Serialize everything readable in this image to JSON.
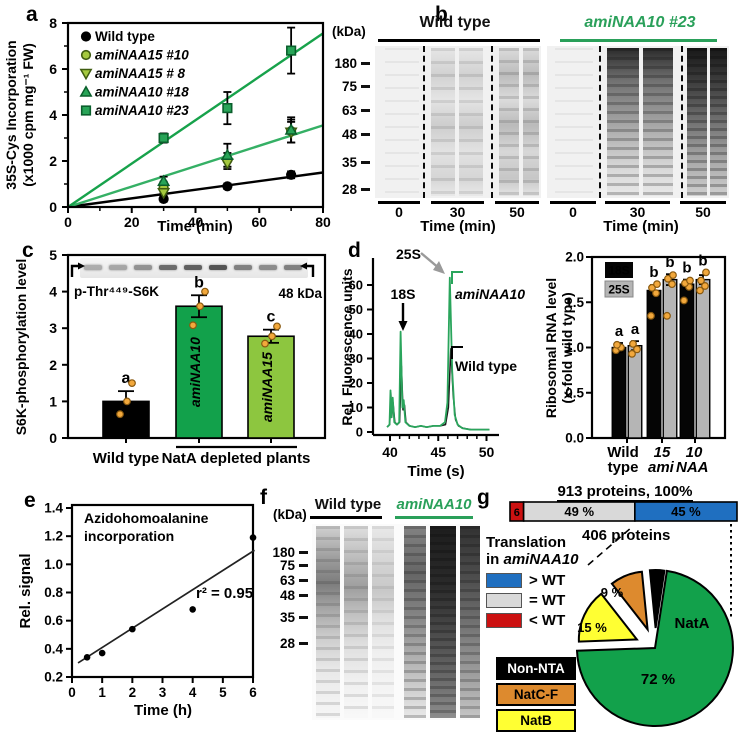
{
  "panels": {
    "a": "a",
    "b": "b",
    "c": "c",
    "d": "d",
    "e": "e",
    "f": "f",
    "g": "g"
  },
  "colors": {
    "green_dark": "#17a24b",
    "green_mid": "#35b065",
    "green_light": "#8dc63f",
    "green_text": "#2aa05a",
    "orange_dot": "#f2a83c",
    "gray_bar": "#b5b5b5",
    "blue": "#1f6fc0",
    "red": "#cc1111",
    "orange_pie": "#dd8a2e",
    "yellow": "#ffff33"
  },
  "panel_b": {
    "kda_header": "(kDa)",
    "kda_marks": [
      "180",
      "75",
      "63",
      "48",
      "35",
      "28"
    ],
    "group_left": "Wild type",
    "group_right": "amiNAA10 #23",
    "time_ticks": [
      "0",
      "30",
      "50"
    ],
    "time_label": "Time (min)"
  },
  "panel_f": {
    "kda_header": "(kDa)",
    "kda_marks": [
      "180",
      "75",
      "63",
      "48",
      "35",
      "28"
    ],
    "group_left": "Wild type",
    "group_right": "amiNAA10"
  },
  "panel_g": {
    "bar_title": "913 proteins, 100%",
    "pie_title": "406 proteins",
    "translation_legend": {
      "line1": "Translation",
      "line2_prefix": "in ",
      "line2_gene": "amiNAA10",
      "items": [
        {
          "label": "> WT",
          "color": "#1f6fc0"
        },
        {
          "label": "= WT",
          "color": "#d9d9d9"
        },
        {
          "label": "< WT",
          "color": "#cc1111"
        }
      ]
    },
    "nat_legend": [
      {
        "label": "Non-NTA",
        "bg": "#000000",
        "fg": "#ffffff"
      },
      {
        "label": "NatC-F",
        "bg": "#dd8a2e",
        "fg": "#000000"
      },
      {
        "label": "NatB",
        "bg": "#ffff33",
        "fg": "#000000"
      }
    ]
  },
  "chart_data": [
    {
      "panel": "a",
      "type": "scatter",
      "xlabel": "Time (min)",
      "ylabel_line1": "35S-Cys Incorporation",
      "ylabel_line2": "(x1000 cpm mg⁻¹ FW)",
      "xlim": [
        0,
        80
      ],
      "ylim": [
        0,
        8
      ],
      "xticks": [
        0,
        20,
        40,
        60,
        80
      ],
      "xminor": [
        10,
        30,
        50,
        70
      ],
      "yticks": [
        0,
        2,
        4,
        6,
        8
      ],
      "yminor": [
        1,
        3,
        5,
        7
      ],
      "series": [
        {
          "name": "Wild type",
          "italic": false,
          "marker": "circle",
          "stroke": "#000000",
          "fill": "#000000",
          "points": [
            [
              30,
              0.35,
              0.12
            ],
            [
              50,
              0.9,
              0.12
            ],
            [
              70,
              1.4,
              0.15
            ]
          ],
          "fit": {
            "x": [
              0,
              80
            ],
            "y": [
              0,
              1.5
            ],
            "color": "#000000"
          }
        },
        {
          "name": "amiNAA15 #10",
          "italic": true,
          "marker": "circle",
          "stroke": "#3f5c10",
          "fill": "#a5c93e",
          "points": [
            [
              30,
              0.85,
              0.25
            ],
            [
              50,
              2.05,
              0.3
            ],
            [
              70,
              3.3,
              0.5
            ]
          ]
        },
        {
          "name": "amiNAA15 # 8",
          "italic": true,
          "marker": "triangle-down",
          "stroke": "#3f5c10",
          "fill": "#a5c93e",
          "points": [
            [
              30,
              0.62,
              0.15
            ],
            [
              50,
              1.9,
              0.25
            ],
            [
              70,
              3.25,
              0.45
            ]
          ]
        },
        {
          "name": "amiNAA10 #18",
          "italic": true,
          "marker": "triangle-up",
          "stroke": "#0a5f2c",
          "fill": "#28a457",
          "points": [
            [
              30,
              1.12,
              0.2
            ],
            [
              50,
              2.25,
              0.5
            ],
            [
              70,
              3.35,
              0.55
            ]
          ],
          "fit": {
            "x": [
              0,
              80
            ],
            "y": [
              0,
              3.55
            ],
            "color": "#35b065"
          }
        },
        {
          "name": "amiNAA10 #23",
          "italic": true,
          "marker": "square",
          "stroke": "#0a5f2c",
          "fill": "#28a457",
          "points": [
            [
              30,
              3.0,
              0.2
            ],
            [
              50,
              4.3,
              0.7
            ],
            [
              70,
              6.8,
              1.0
            ]
          ],
          "fit": {
            "x": [
              0,
              80
            ],
            "y": [
              0,
              7.55
            ],
            "color": "#17a24b"
          }
        }
      ]
    },
    {
      "panel": "c",
      "type": "bar",
      "ylabel": "S6K-phosphorylation level",
      "ylim": [
        0,
        5
      ],
      "yticks": [
        0,
        1,
        2,
        3,
        4,
        5
      ],
      "categories": [
        "Wild type",
        "amiNAA10",
        "amiNAA15"
      ],
      "values": [
        1.0,
        3.6,
        2.78
      ],
      "errors": [
        0.28,
        0.3,
        0.18
      ],
      "sig_letters": [
        "a",
        "b",
        "c"
      ],
      "bar_colors": [
        "#000000",
        "#12a14b",
        "#8dc63f"
      ],
      "bar_inner_labels": [
        "",
        "amiNAA10",
        "amiNAA15"
      ],
      "dots": [
        [
          0.65,
          1.0,
          1.5
        ],
        [
          3.08,
          3.6,
          4.0
        ],
        [
          2.58,
          2.78,
          3.05
        ]
      ],
      "xlabel_left": "Wild type",
      "xlabel_right": "NatA depleted plants",
      "blot_label": "p-Thr⁴⁴⁹-S6K",
      "blot_kda": "48 kDa"
    },
    {
      "panel": "d_trace",
      "type": "line",
      "ylabel": "Rel. Fluorescence units",
      "xlabel": "Time (s)",
      "xlim": [
        39.2,
        51
      ],
      "ylim": [
        0,
        65
      ],
      "xticks": [
        40,
        45,
        50
      ],
      "xminor": [
        41,
        42,
        43,
        44,
        46,
        47,
        48,
        49
      ],
      "yticks": [
        0,
        10,
        20,
        30,
        40,
        50,
        60
      ],
      "annotations": {
        "peak1": "25S",
        "peak2": "18S",
        "trace_green": "amiNAA10",
        "trace_black": "Wild type"
      },
      "series": [
        {
          "name": "amiNAA10",
          "color": "#2aa55c",
          "points": [
            [
              39.7,
              2
            ],
            [
              39.95,
              3
            ],
            [
              40.05,
              17
            ],
            [
              40.15,
              6
            ],
            [
              40.28,
              14
            ],
            [
              40.45,
              4
            ],
            [
              40.7,
              3
            ],
            [
              40.95,
              4
            ],
            [
              41.1,
              41
            ],
            [
              41.28,
              10
            ],
            [
              41.42,
              13
            ],
            [
              41.6,
              4
            ],
            [
              42,
              2.5
            ],
            [
              42.6,
              2
            ],
            [
              43.2,
              2.5
            ],
            [
              43.8,
              2
            ],
            [
              44.5,
              2.5
            ],
            [
              45.2,
              2.5
            ],
            [
              45.7,
              4
            ],
            [
              45.95,
              12
            ],
            [
              46.2,
              63
            ],
            [
              46.45,
              25
            ],
            [
              46.7,
              7
            ],
            [
              47,
              3
            ],
            [
              47.5,
              1.5
            ],
            [
              48.3,
              1
            ],
            [
              49.2,
              1
            ],
            [
              50.3,
              1
            ]
          ]
        },
        {
          "name": "Wild type",
          "color": "#1a1a1a",
          "points": [
            [
              39.7,
              2
            ],
            [
              39.97,
              3
            ],
            [
              40.08,
              16
            ],
            [
              40.18,
              6
            ],
            [
              40.31,
              12
            ],
            [
              40.5,
              4
            ],
            [
              40.75,
              3
            ],
            [
              41.0,
              4
            ],
            [
              41.18,
              27
            ],
            [
              41.35,
              9
            ],
            [
              41.5,
              11
            ],
            [
              41.65,
              4
            ],
            [
              42.05,
              2.5
            ],
            [
              42.6,
              2
            ],
            [
              43.2,
              2.5
            ],
            [
              43.8,
              2
            ],
            [
              44.5,
              2.5
            ],
            [
              45.2,
              2.5
            ],
            [
              45.75,
              3
            ],
            [
              46.05,
              10
            ],
            [
              46.3,
              34
            ],
            [
              46.55,
              15
            ],
            [
              46.8,
              5
            ],
            [
              47.1,
              2.5
            ],
            [
              47.6,
              1.5
            ],
            [
              48.4,
              1
            ],
            [
              49.3,
              1
            ],
            [
              50.3,
              1
            ]
          ]
        }
      ]
    },
    {
      "panel": "d_bar",
      "type": "bar",
      "ylabel_line1": "Ribosomal RNA level",
      "ylabel_line2": "(x-fold wild type)",
      "ylim": [
        0,
        2
      ],
      "yticks": [
        "0.0",
        "0.5",
        "1.0",
        "1.5",
        "2.0"
      ],
      "categories": [
        "Wild type",
        "15",
        "10"
      ],
      "xlabels": {
        "wt1": "Wild",
        "wt2": "type",
        "g15": "15",
        "g10": "10",
        "gene_prefix": "ami",
        "gene_suffix": "NAA"
      },
      "series": [
        {
          "name": "18S",
          "color": "#050505",
          "values": [
            1.0,
            1.63,
            1.7
          ],
          "errors": [
            0.05,
            0.06,
            0.05
          ]
        },
        {
          "name": "25S",
          "color": "#b5b5b5",
          "values": [
            1.02,
            1.75,
            1.75
          ],
          "errors": [
            0.05,
            0.06,
            0.05
          ]
        }
      ],
      "sig": [
        [
          "a",
          "a"
        ],
        [
          "b",
          "b"
        ],
        [
          "b",
          "b"
        ]
      ],
      "dots_18S": [
        [
          0.97,
          1.0,
          1.03
        ],
        [
          1.35,
          1.6,
          1.66,
          1.7
        ],
        [
          1.52,
          1.67,
          1.71,
          1.74
        ]
      ],
      "dots_25S": [
        [
          0.93,
          0.98,
          1.04
        ],
        [
          1.35,
          1.7,
          1.76,
          1.8
        ],
        [
          1.63,
          1.68,
          1.74,
          1.83
        ]
      ]
    },
    {
      "panel": "e",
      "type": "scatter",
      "title_line1": "Azidohomoalanine",
      "title_line2": "incorporation",
      "ylabel": "Rel. signal",
      "xlabel": "Time (h)",
      "xlim": [
        0,
        6
      ],
      "ylim": [
        0.2,
        1.4
      ],
      "xticks": [
        0,
        1,
        2,
        3,
        4,
        5,
        6
      ],
      "yticks": [
        "0.2",
        "0.4",
        "0.6",
        "0.8",
        "1.0",
        "1.2",
        "1.4"
      ],
      "points": [
        [
          0.5,
          0.34
        ],
        [
          1,
          0.37
        ],
        [
          2,
          0.54
        ],
        [
          4,
          0.68
        ],
        [
          6,
          1.19
        ]
      ],
      "fit_line": {
        "x": [
          0.2,
          6.05
        ],
        "y": [
          0.3,
          1.1
        ]
      },
      "annotation": "r² = 0.95"
    },
    {
      "panel": "g_bar",
      "type": "stacked-bar",
      "title": "913 proteins, 100%",
      "segments": [
        {
          "label": "6",
          "pct": 6,
          "color": "#cc1111",
          "text_color": "#ffffff"
        },
        {
          "label": "49 %",
          "pct": 49,
          "color": "#d9d9d9",
          "text_color": "#000000"
        },
        {
          "label": "45 %",
          "pct": 45,
          "color": "#1f6fc0",
          "text_color": "#04245c"
        }
      ]
    },
    {
      "panel": "g_pie",
      "type": "pie",
      "subtitle": "406 proteins",
      "start_angle_deg": 268,
      "slices": [
        {
          "label": "NatB",
          "pct": 15,
          "color": "#ffff33",
          "value_label": "15 %",
          "exploded": true
        },
        {
          "label": "NatC-F",
          "pct": 9,
          "color": "#dd8a2e",
          "value_label": "9 %",
          "exploded": true
        },
        {
          "label": "Non-NTA",
          "pct": 4,
          "color": "#000000",
          "value_label": "",
          "exploded": true
        },
        {
          "label": "NatA",
          "pct": 72,
          "color": "#12a14b",
          "value_label": "72 %",
          "exploded": false
        }
      ]
    }
  ]
}
